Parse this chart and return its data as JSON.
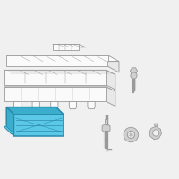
{
  "bg_color": "#f0f0f0",
  "highlight_color": "#5bc8e8",
  "highlight_edge": "#2a8aaa",
  "highlight_dark": "#3aaecc",
  "line_color": "#999999",
  "line_width": 0.6,
  "fill_white": "#fafafa",
  "fill_light": "#e8e8e8",
  "fill_gray": "#d0d0d0"
}
